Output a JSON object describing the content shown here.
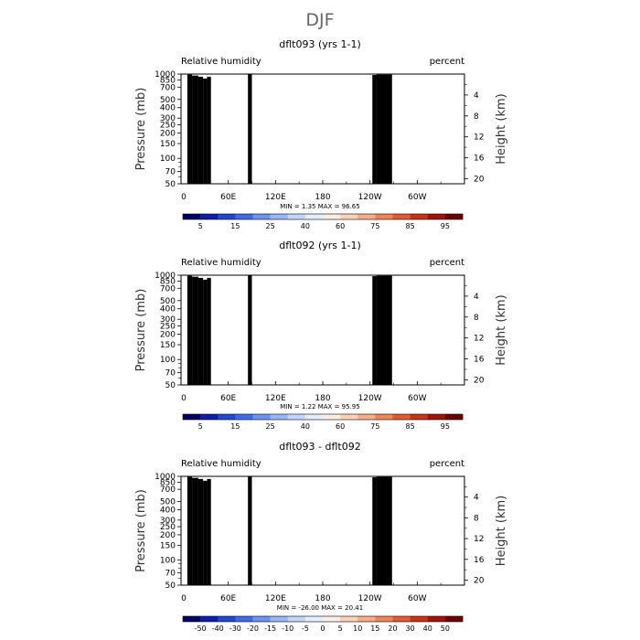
{
  "figure_title": "DJF",
  "colors": {
    "humidity_scale": [
      "#000066",
      "#0d1ea8",
      "#2046d2",
      "#3f6ce6",
      "#6b93ef",
      "#98b6f5",
      "#c4d6fa",
      "#e6eefd",
      "#fdeee3",
      "#fbd2b6",
      "#f7ad86",
      "#ef8459",
      "#e15a33",
      "#c93315",
      "#a0140a",
      "#6a0000"
    ],
    "difference_scale": [
      "#000066",
      "#0d1ea8",
      "#2046d2",
      "#3f6ce6",
      "#6b93ef",
      "#98b6f5",
      "#c4d6fa",
      "#e6eefd",
      "#fdeee3",
      "#fbd2b6",
      "#f7ad86",
      "#ef8459",
      "#e15a33",
      "#c93315",
      "#a0140a",
      "#6a0000"
    ],
    "land": "#000000"
  },
  "chart_data": [
    {
      "type": "heatmap",
      "title": "dflt093 (yrs 1-1)",
      "left_label": "Relative humidity",
      "right_label": "percent",
      "xlabel": "",
      "ylabel": "Pressure (mb)",
      "y2label": "Height (km)",
      "x_ticks": [
        "0",
        "60E",
        "120E",
        "180",
        "120W",
        "60W"
      ],
      "x_tick_values": [
        0,
        60,
        120,
        180,
        240,
        300
      ],
      "xlim": [
        0,
        360
      ],
      "y_ticks": [
        "50",
        "70",
        "100",
        "150",
        "200",
        "250",
        "300",
        "400",
        "500",
        "700",
        "850",
        "1000"
      ],
      "y_tick_values": [
        50,
        70,
        100,
        150,
        200,
        250,
        300,
        400,
        500,
        700,
        850,
        1000
      ],
      "ylim": [
        1000,
        50
      ],
      "y2_ticks": [
        "20",
        "16",
        "12",
        "8",
        "4"
      ],
      "y2_tick_values": [
        20,
        16,
        12,
        8,
        4
      ],
      "stats": "MIN =    1.35   MAX =   96.65",
      "min": 1.35,
      "max": 96.65,
      "levels": [
        5,
        10,
        15,
        20,
        25,
        30,
        40,
        50,
        60,
        65,
        75,
        80,
        85,
        90,
        95
      ],
      "colorbar_labels": [
        "5",
        "15",
        "25",
        "40",
        "60",
        "75",
        "85",
        "95"
      ],
      "field": "humidity"
    },
    {
      "type": "heatmap",
      "title": "dflt092 (yrs 1-1)",
      "left_label": "Relative humidity",
      "right_label": "percent",
      "xlabel": "",
      "ylabel": "Pressure (mb)",
      "y2label": "Height (km)",
      "x_ticks": [
        "0",
        "60E",
        "120E",
        "180",
        "120W",
        "60W"
      ],
      "x_tick_values": [
        0,
        60,
        120,
        180,
        240,
        300
      ],
      "xlim": [
        0,
        360
      ],
      "y_ticks": [
        "50",
        "70",
        "100",
        "150",
        "200",
        "250",
        "300",
        "400",
        "500",
        "700",
        "850",
        "1000"
      ],
      "y_tick_values": [
        50,
        70,
        100,
        150,
        200,
        250,
        300,
        400,
        500,
        700,
        850,
        1000
      ],
      "ylim": [
        1000,
        50
      ],
      "y2_ticks": [
        "20",
        "16",
        "12",
        "8",
        "4"
      ],
      "y2_tick_values": [
        20,
        16,
        12,
        8,
        4
      ],
      "stats": "MIN =    1.22   MAX =   95.95",
      "min": 1.22,
      "max": 95.95,
      "levels": [
        5,
        10,
        15,
        20,
        25,
        30,
        40,
        50,
        60,
        65,
        75,
        80,
        85,
        90,
        95
      ],
      "colorbar_labels": [
        "5",
        "15",
        "25",
        "40",
        "60",
        "75",
        "85",
        "95"
      ],
      "field": "humidity"
    },
    {
      "type": "heatmap",
      "title": "dflt093 - dflt092",
      "left_label": "Relative humidity",
      "right_label": "percent",
      "xlabel": "",
      "ylabel": "Pressure (mb)",
      "y2label": "Height (km)",
      "x_ticks": [
        "0",
        "60E",
        "120E",
        "180",
        "120W",
        "60W"
      ],
      "x_tick_values": [
        0,
        60,
        120,
        180,
        240,
        300
      ],
      "xlim": [
        0,
        360
      ],
      "y_ticks": [
        "50",
        "70",
        "100",
        "150",
        "200",
        "250",
        "300",
        "400",
        "500",
        "700",
        "850",
        "1000"
      ],
      "y_tick_values": [
        50,
        70,
        100,
        150,
        200,
        250,
        300,
        400,
        500,
        700,
        850,
        1000
      ],
      "ylim": [
        1000,
        50
      ],
      "y2_ticks": [
        "20",
        "16",
        "12",
        "8",
        "4"
      ],
      "y2_tick_values": [
        20,
        16,
        12,
        8,
        4
      ],
      "stats": "MIN =  -26.00   MAX =   20.41",
      "min": -26.0,
      "max": 20.41,
      "levels": [
        -50,
        -40,
        -30,
        -20,
        -15,
        -10,
        -5,
        0,
        5,
        10,
        15,
        20,
        30,
        40,
        50
      ],
      "colorbar_labels": [
        "-50",
        "-40",
        "-30",
        "-20",
        "-15",
        "-10",
        "-5",
        "0",
        "5",
        "10",
        "15",
        "20",
        "30",
        "40",
        "50"
      ],
      "field": "difference"
    }
  ]
}
